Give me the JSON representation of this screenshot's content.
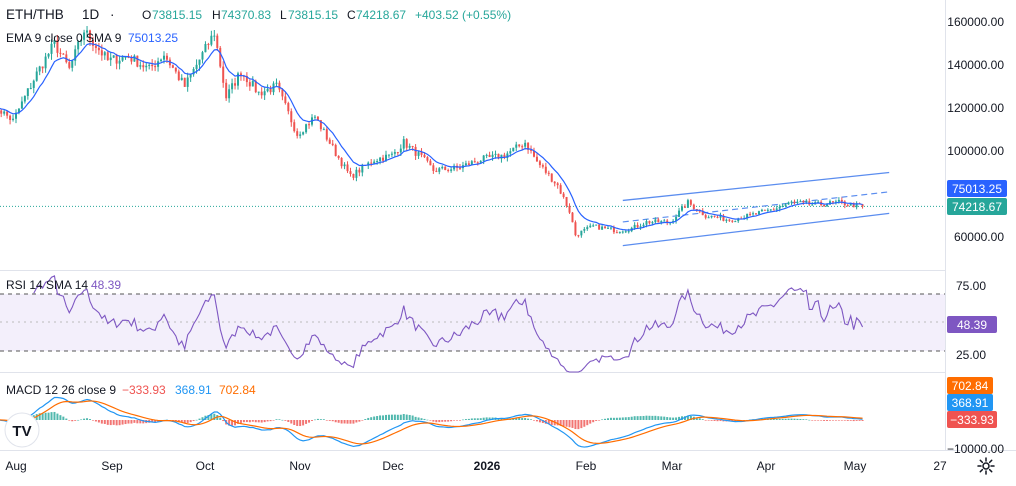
{
  "header": {
    "symbol": "ETH/THB",
    "interval": "1D",
    "separator": "·",
    "open_label": "O",
    "open": "73815.15",
    "high_label": "H",
    "high": "74370.83",
    "low_label": "L",
    "low": "73815.15",
    "close_label": "C",
    "close": "74218.67",
    "change": "+403.52 (+0.55%)"
  },
  "indicators": {
    "ema_label": "EMA 9 close 0 SMA 9",
    "ema_value": "75013.25",
    "rsi_label": "RSI 14 SMA 14",
    "rsi_value": "48.39",
    "macd_label": "MACD 12 26 close 9",
    "macd_hist": "−333.93",
    "macd_line": "368.91",
    "macd_signal": "702.84"
  },
  "badges": {
    "ema": "75013.25",
    "close": "74218.67",
    "rsi": "48.39",
    "macd_signal": "702.84",
    "macd_line": "368.91",
    "macd_hist": "−333.93"
  },
  "price_axis": [
    "160000.00",
    "140000.00",
    "120000.00",
    "100000.00",
    "60000.00"
  ],
  "rsi_axis": [
    "75.00",
    "25.00"
  ],
  "macd_axis": [
    "−10000.00"
  ],
  "time_axis": [
    "Aug",
    "Sep",
    "Oct",
    "Nov",
    "Dec",
    "2026",
    "Feb",
    "Mar",
    "Apr",
    "May",
    "27"
  ],
  "logo_text": "TV",
  "colors": {
    "up": "#26a69a",
    "down": "#ef5350",
    "ema": "#2962ff",
    "rsi": "#7e57c2",
    "macd": "#2196f3",
    "signal": "#ff6d00",
    "channel": "#5b8def"
  },
  "chart_data": {
    "type": "candlestick",
    "ylim": [
      48000,
      165000
    ],
    "price_waypoints": [
      {
        "date": "2025-07-24",
        "close": 122000
      },
      {
        "date": "2025-07-31",
        "close": 114000
      },
      {
        "date": "2025-08-08",
        "close": 136000
      },
      {
        "date": "2025-08-14",
        "close": 150000
      },
      {
        "date": "2025-08-19",
        "close": 138000
      },
      {
        "date": "2025-08-24",
        "close": 156000
      },
      {
        "date": "2025-09-01",
        "close": 142000
      },
      {
        "date": "2025-09-08",
        "close": 144000
      },
      {
        "date": "2025-09-15",
        "close": 138000
      },
      {
        "date": "2025-09-20",
        "close": 145000
      },
      {
        "date": "2025-09-27",
        "close": 130000
      },
      {
        "date": "2025-10-01",
        "close": 140000
      },
      {
        "date": "2025-10-07",
        "close": 155000
      },
      {
        "date": "2025-10-11",
        "close": 125000
      },
      {
        "date": "2025-10-16",
        "close": 137000
      },
      {
        "date": "2025-10-22",
        "close": 127000
      },
      {
        "date": "2025-10-28",
        "close": 130000
      },
      {
        "date": "2025-11-04",
        "close": 108000
      },
      {
        "date": "2025-11-10",
        "close": 116000
      },
      {
        "date": "2025-11-17",
        "close": 99000
      },
      {
        "date": "2025-11-22",
        "close": 88000
      },
      {
        "date": "2025-11-30",
        "close": 96000
      },
      {
        "date": "2025-12-06",
        "close": 98000
      },
      {
        "date": "2025-12-10",
        "close": 104000
      },
      {
        "date": "2025-12-16",
        "close": 97000
      },
      {
        "date": "2025-12-20",
        "close": 91000
      },
      {
        "date": "2025-12-28",
        "close": 92000
      },
      {
        "date": "2026-01-05",
        "close": 96000
      },
      {
        "date": "2026-01-13",
        "close": 98000
      },
      {
        "date": "2026-01-20",
        "close": 104000
      },
      {
        "date": "2026-01-24",
        "close": 95000
      },
      {
        "date": "2026-01-31",
        "close": 84000
      },
      {
        "date": "2026-02-04",
        "close": 72000
      },
      {
        "date": "2026-02-06",
        "close": 61000
      },
      {
        "date": "2026-02-12",
        "close": 65000
      },
      {
        "date": "2026-02-20",
        "close": 63000
      },
      {
        "date": "2026-02-25",
        "close": 64000
      },
      {
        "date": "2026-03-02",
        "close": 67000
      },
      {
        "date": "2026-03-10",
        "close": 67000
      },
      {
        "date": "2026-03-16",
        "close": 76000
      },
      {
        "date": "2026-03-22",
        "close": 70000
      },
      {
        "date": "2026-03-30",
        "close": 68000
      },
      {
        "date": "2026-04-06",
        "close": 70000
      },
      {
        "date": "2026-04-14",
        "close": 73000
      },
      {
        "date": "2026-04-20",
        "close": 76000
      },
      {
        "date": "2026-04-28",
        "close": 75000
      },
      {
        "date": "2026-05-06",
        "close": 76000
      },
      {
        "date": "2026-05-14",
        "close": 74218.67
      }
    ],
    "channel": {
      "upper": [
        {
          "date": "2026-02-22",
          "value": 77000
        },
        {
          "date": "2026-05-23",
          "value": 90000
        }
      ],
      "middle": [
        {
          "date": "2026-02-22",
          "value": 67000
        },
        {
          "date": "2026-05-23",
          "value": 81000
        }
      ],
      "lower": [
        {
          "date": "2026-02-22",
          "value": 56000
        },
        {
          "date": "2026-05-23",
          "value": 71000
        }
      ]
    },
    "rsi_levels": [
      70,
      50,
      30
    ],
    "rsi_ylim": [
      20,
      80
    ],
    "macd_ylim": [
      -12000,
      4000
    ]
  }
}
